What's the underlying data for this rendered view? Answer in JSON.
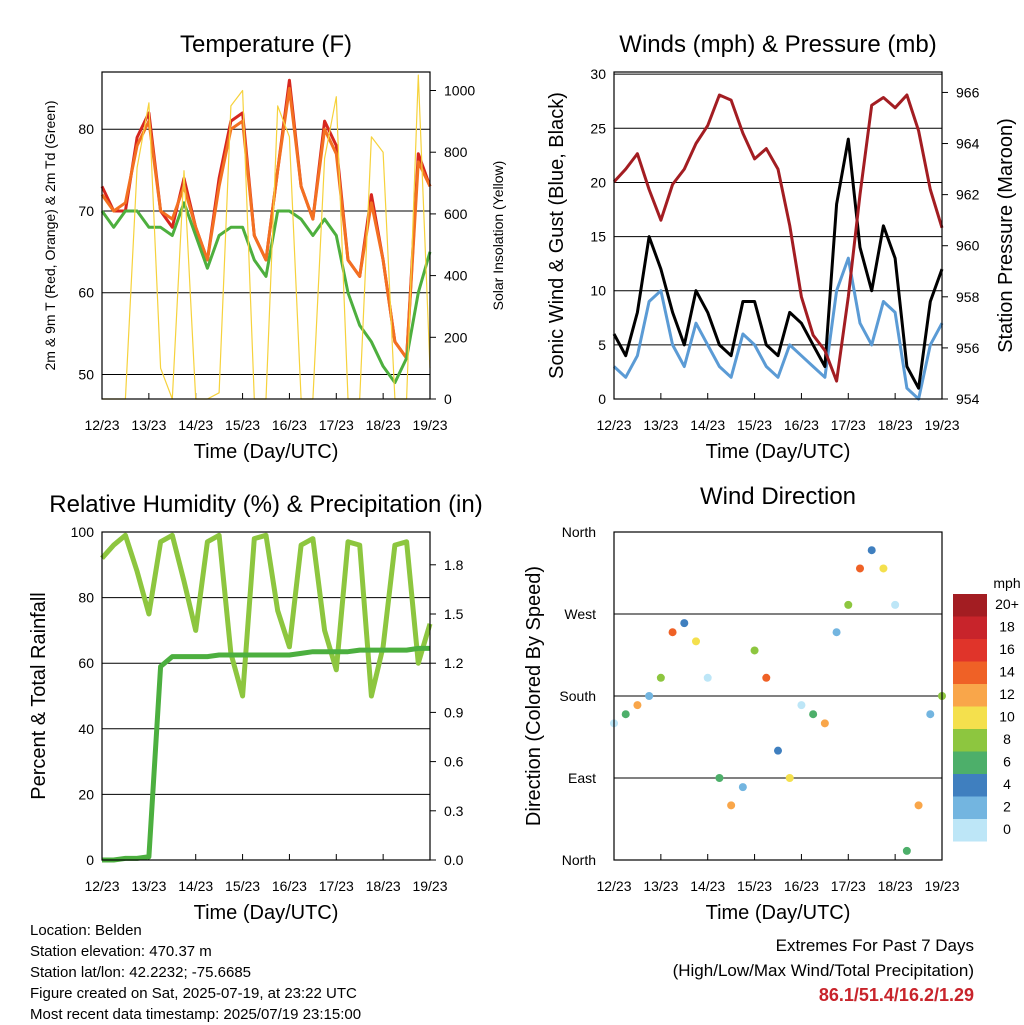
{
  "info": {
    "location": "Location: Belden",
    "elevation": "Station elevation: 470.37 m",
    "latlon": "Station lat/lon: 42.2232; -75.6685",
    "created": "Figure created on Sat, 2025-07-19, at 23:22 UTC",
    "recent": "Most recent data timestamp: 2025/07/19 23:15:00"
  },
  "extremes": {
    "line1": "Extremes For Past 7 Days",
    "line2": "(High/Low/Max Wind/Total Precipitation)",
    "values": "86.1/51.4/16.2/1.29",
    "color": "#c8242b"
  },
  "chart_data": [
    {
      "type": "line",
      "title": "Temperature (F)",
      "xlabel": "Time (Day/UTC)",
      "ylabel": "2m & 9m T (Red, Orange) & 2m Td (Green)",
      "y2label": "Solar Insolation (Yellow)",
      "x_ticks": [
        "12/23",
        "13/23",
        "14/23",
        "15/23",
        "16/23",
        "17/23",
        "18/23",
        "19/23"
      ],
      "ylim": [
        47,
        87
      ],
      "y_ticks": [
        50,
        60,
        70,
        80
      ],
      "y2lim": [
        0,
        1060
      ],
      "y2_ticks": [
        0,
        200,
        400,
        600,
        800,
        1000
      ],
      "grid": true,
      "x": [
        0,
        0.25,
        0.5,
        0.75,
        1,
        1.25,
        1.5,
        1.75,
        2,
        2.25,
        2.5,
        2.75,
        3,
        3.25,
        3.5,
        3.75,
        4,
        4.25,
        4.5,
        4.75,
        5,
        5.25,
        5.5,
        5.75,
        6,
        6.25,
        6.5,
        6.75,
        7
      ],
      "series": [
        {
          "color": "#d7261e",
          "values": [
            73,
            70,
            70,
            79,
            82,
            70,
            68,
            74,
            68,
            64,
            74,
            81,
            82,
            67,
            64,
            75,
            86,
            73,
            69,
            81,
            78,
            64,
            62,
            72,
            64,
            54,
            52,
            77,
            73
          ]
        },
        {
          "color": "#f37021",
          "values": [
            72,
            70,
            71,
            78,
            81,
            70,
            69,
            73,
            68,
            64,
            73,
            80,
            81,
            67,
            64,
            75,
            85,
            73,
            69,
            80,
            77,
            64,
            62,
            71,
            64,
            54,
            52,
            76,
            73
          ]
        },
        {
          "color": "#4daf3e",
          "values": [
            70,
            68,
            70,
            70,
            68,
            68,
            67,
            71,
            67,
            63,
            67,
            68,
            68,
            64,
            62,
            70,
            70,
            69,
            67,
            69,
            67,
            60,
            56,
            54,
            51,
            49,
            52,
            60,
            65
          ]
        },
        {
          "color": "#f6d23c",
          "y_axis": "right",
          "values": [
            0,
            0,
            0,
            750,
            960,
            100,
            0,
            740,
            0,
            0,
            20,
            950,
            1000,
            0,
            0,
            950,
            850,
            0,
            0,
            780,
            980,
            0,
            0,
            850,
            800,
            0,
            0,
            1050,
            100
          ]
        }
      ]
    },
    {
      "type": "line",
      "title": "Winds (mph) & Pressure (mb)",
      "xlabel": "Time (Day/UTC)",
      "ylabel": "Sonic Wind & Gust (Blue, Black)",
      "y2label": "Station Pressure (Maroon)",
      "x_ticks": [
        "12/23",
        "13/23",
        "14/23",
        "15/23",
        "16/23",
        "17/23",
        "18/23",
        "19/23"
      ],
      "ylim": [
        0,
        30.2
      ],
      "y_ticks": [
        0,
        5,
        10,
        15,
        20,
        25,
        30
      ],
      "y2lim": [
        954,
        966.8
      ],
      "y2_ticks": [
        954,
        956,
        958,
        960,
        962,
        964,
        966
      ],
      "grid": true,
      "x": [
        0,
        0.25,
        0.5,
        0.75,
        1,
        1.25,
        1.5,
        1.75,
        2,
        2.25,
        2.5,
        2.75,
        3,
        3.25,
        3.5,
        3.75,
        4,
        4.25,
        4.5,
        4.75,
        5,
        5.25,
        5.5,
        5.75,
        6,
        6.25,
        6.5,
        6.75,
        7
      ],
      "series": [
        {
          "name": "",
          "color": "#5b9bd5",
          "values": [
            3,
            2,
            4,
            9,
            10,
            5,
            3,
            7,
            5,
            3,
            2,
            6,
            5,
            3,
            2,
            5,
            4,
            3,
            2,
            10,
            13,
            7,
            5,
            9,
            8,
            1,
            0,
            5,
            7
          ]
        },
        {
          "name": "",
          "color": "#000000",
          "values": [
            6,
            4,
            8,
            15,
            12,
            8,
            5,
            10,
            8,
            5,
            4,
            9,
            9,
            5,
            4,
            8,
            7,
            5,
            3,
            18,
            24,
            14,
            10,
            16,
            13,
            3,
            1,
            9,
            12
          ]
        },
        {
          "name": "",
          "color": "#a31d22",
          "y_axis": "right",
          "values": [
            962.5,
            963,
            963.6,
            962.2,
            961,
            962.4,
            963,
            964,
            964.7,
            965.9,
            965.7,
            964.4,
            963.4,
            963.8,
            963,
            960.8,
            958,
            956.5,
            955.9,
            954.7,
            958,
            962,
            965.5,
            965.8,
            965.4,
            965.9,
            964.5,
            962.2,
            960.7
          ]
        }
      ]
    },
    {
      "type": "line",
      "title": "Relative Humidity (%) & Precipitation (in)",
      "xlabel": "Time (Day/UTC)",
      "ylabel": "Percent & Total Rainfall",
      "x_ticks": [
        "12/23",
        "13/23",
        "14/23",
        "15/23",
        "16/23",
        "17/23",
        "18/23",
        "19/23"
      ],
      "ylim": [
        0,
        100
      ],
      "y_ticks": [
        0,
        20,
        40,
        60,
        80,
        100
      ],
      "y2lim": [
        0,
        2.0
      ],
      "y2_ticks": [
        "0.0",
        "0.3",
        "0.6",
        "0.9",
        "1.2",
        "1.5",
        "1.8"
      ],
      "grid": true,
      "x": [
        0,
        0.25,
        0.5,
        0.75,
        1,
        1.25,
        1.5,
        1.75,
        2,
        2.25,
        2.5,
        2.75,
        3,
        3.25,
        3.5,
        3.75,
        4,
        4.25,
        4.5,
        4.75,
        5,
        5.25,
        5.5,
        5.75,
        6,
        6.25,
        6.5,
        6.75,
        7
      ],
      "series": [
        {
          "color": "#8dc63f",
          "values": [
            92,
            96,
            99,
            88,
            75,
            97,
            99,
            85,
            70,
            97,
            99,
            63,
            50,
            98,
            99,
            76,
            65,
            96,
            98,
            70,
            58,
            97,
            96,
            50,
            65,
            96,
            97,
            60,
            72
          ]
        },
        {
          "color": "#4caf3f",
          "y_axis": "right",
          "values": [
            0,
            0,
            0.01,
            0.01,
            0.02,
            1.18,
            1.24,
            1.24,
            1.24,
            1.24,
            1.25,
            1.25,
            1.25,
            1.25,
            1.25,
            1.25,
            1.25,
            1.26,
            1.27,
            1.27,
            1.27,
            1.27,
            1.28,
            1.28,
            1.28,
            1.28,
            1.28,
            1.29,
            1.29
          ]
        }
      ]
    },
    {
      "type": "scatter",
      "title": "Wind Direction",
      "xlabel": "Time (Day/UTC)",
      "ylabel": "Direction (Colored By Speed)",
      "x_ticks": [
        "12/23",
        "13/23",
        "14/23",
        "15/23",
        "16/23",
        "17/23",
        "18/23",
        "19/23"
      ],
      "y_ticks": [
        "North",
        "East",
        "South",
        "West",
        "North"
      ],
      "ylim": [
        0,
        360
      ],
      "colorbar": {
        "title": "mph",
        "labels": [
          "20+",
          "18",
          "16",
          "14",
          "12",
          "10",
          "8",
          "6",
          "4",
          "2",
          "0"
        ],
        "colors": [
          "#a31d22",
          "#c8242b",
          "#e0342a",
          "#ef6126",
          "#f9a64a",
          "#f4e04d",
          "#8dc63f",
          "#4daf6a",
          "#3f7fbf",
          "#73b5e0",
          "#bde6f7"
        ]
      },
      "x": [
        0,
        0.25,
        0.5,
        0.75,
        1,
        1.25,
        1.5,
        1.75,
        2,
        2.25,
        2.5,
        2.75,
        3,
        3.25,
        3.5,
        3.75,
        4,
        4.25,
        4.5,
        4.75,
        5,
        5.25,
        5.5,
        5.75,
        6,
        6.25,
        6.5,
        6.75,
        7
      ],
      "series": [
        {
          "values": [
            150,
            160,
            170,
            180,
            200,
            250,
            260,
            240,
            200,
            90,
            60,
            80,
            230,
            200,
            120,
            90,
            170,
            160,
            150,
            250,
            280,
            320,
            340,
            320,
            280,
            10,
            60,
            160,
            180
          ]
        }
      ]
    }
  ]
}
